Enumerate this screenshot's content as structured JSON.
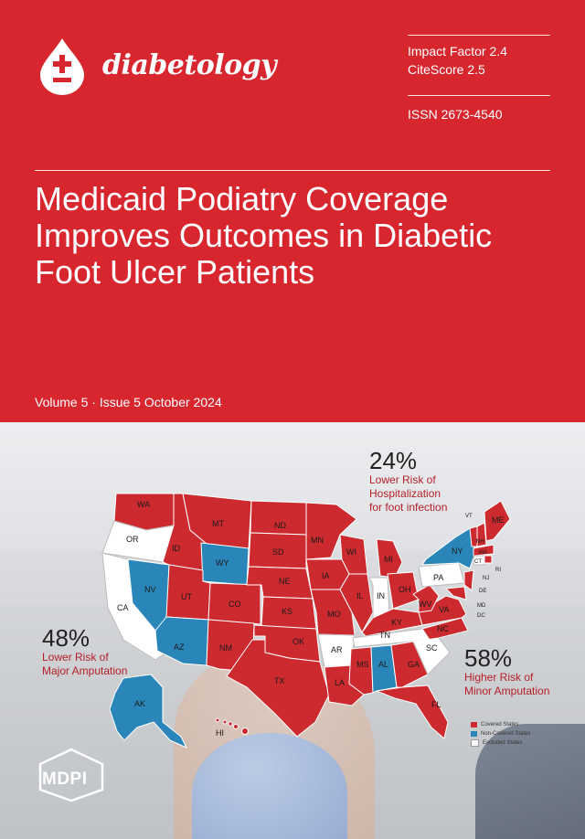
{
  "journal": {
    "name": "diabetology"
  },
  "metrics": {
    "impact_factor": "Impact Factor 2.4",
    "citescore": "CiteScore 2.5",
    "issn": "ISSN 2673-4540"
  },
  "cover": {
    "title_lines": [
      "Medicaid Podiatry Coverage",
      "Improves Outcomes in Diabetic",
      "Foot Ulcer Patients"
    ],
    "volume_issue": "Volume 5 · Issue 5 October 2024"
  },
  "stats": {
    "hospitalization": {
      "percent": "24%",
      "description": "Lower Risk of\nHospitalization\nfor foot infection"
    },
    "major_amputation": {
      "percent": "48%",
      "description": "Lower Risk of\nMajor Amputation"
    },
    "minor_amputation": {
      "percent": "58%",
      "description": "Higher Risk of\nMinor Amputation"
    }
  },
  "legend": {
    "covered": {
      "label": "Covered States",
      "color": "#cc2a2f"
    },
    "non_covered": {
      "label": "Non-Covered States",
      "color": "#2a86b8"
    },
    "excluded": {
      "label": "Excluded States",
      "color": "#ffffff"
    }
  },
  "states": {
    "WA": "WA",
    "OR": "OR",
    "CA": "CA",
    "NV": "NV",
    "ID": "ID",
    "MT": "MT",
    "WY": "WY",
    "UT": "UT",
    "AZ": "AZ",
    "CO": "CO",
    "NM": "NM",
    "ND": "ND",
    "SD": "SD",
    "NE": "NE",
    "KS": "KS",
    "OK": "OK",
    "TX": "TX",
    "MN": "MN",
    "IA": "IA",
    "MO": "MO",
    "AR": "AR",
    "LA": "LA",
    "WI": "WI",
    "IL": "IL",
    "MI": "MI",
    "IN": "IN",
    "OH": "OH",
    "KY": "KY",
    "TN": "TN",
    "MS": "MS",
    "AL": "AL",
    "GA": "GA",
    "FL": "FL",
    "SC": "SC",
    "NC": "NC",
    "VA": "VA",
    "WV": "WV",
    "PA": "PA",
    "NY": "NY",
    "VT": "VT",
    "NH": "NH",
    "ME": "ME",
    "MA": "MA",
    "RI": "RI",
    "CT": "CT",
    "NJ": "NJ",
    "DE": "DE",
    "MD": "MD",
    "DC": "DC",
    "AK": "AK",
    "HI": "HI"
  },
  "publisher": {
    "name": "MDPI"
  }
}
